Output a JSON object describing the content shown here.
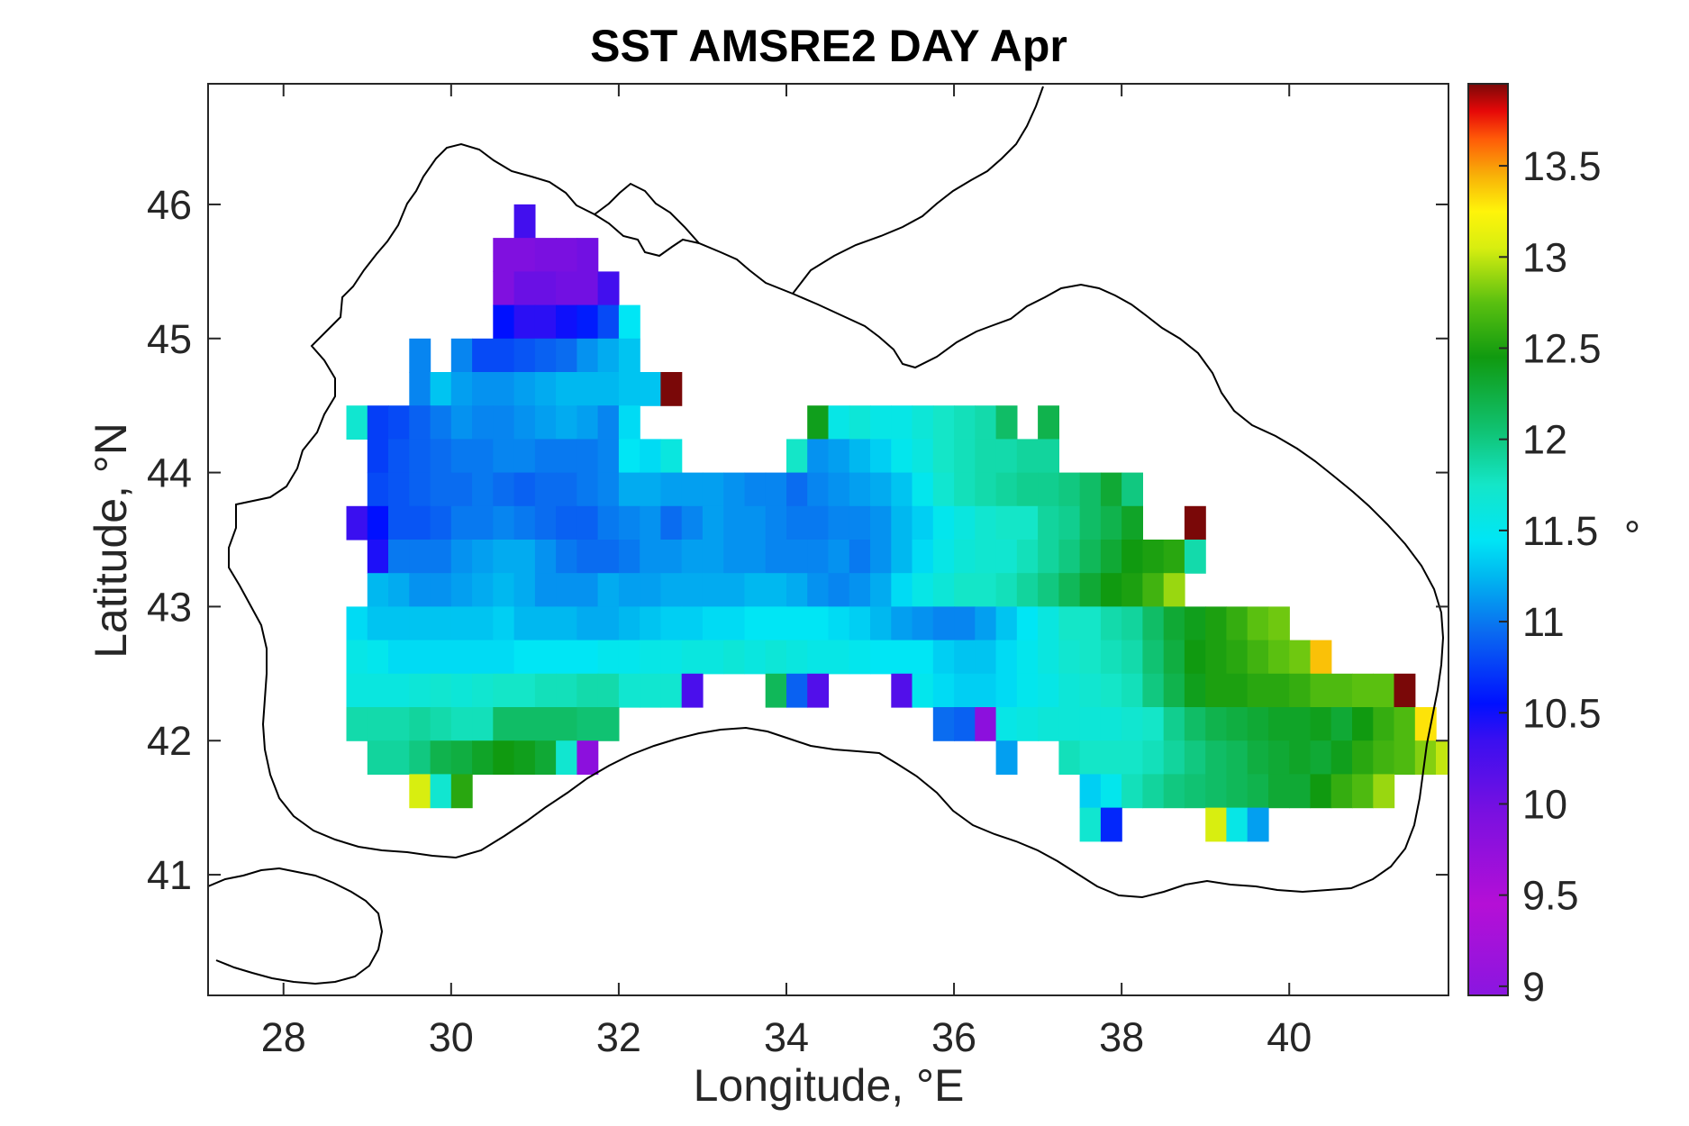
{
  "title": "SST AMSRE2 DAY Apr",
  "xlabel": "Longitude, °E",
  "ylabel": "Latitude, °N",
  "colorbar_unit": "°",
  "x_ticks": [
    "28",
    "30",
    "32",
    "34",
    "36",
    "38",
    "40"
  ],
  "y_ticks": [
    "46",
    "45",
    "44",
    "43",
    "42",
    "41"
  ],
  "colorbar_ticks": [
    "13.5",
    "13",
    "12.5",
    "12",
    "11.5",
    "11",
    "10.5",
    "10",
    "9.5",
    "9"
  ],
  "chart_data": {
    "type": "heatmap",
    "title": "SST AMSRE2 DAY Apr",
    "xlabel": "Longitude, °E",
    "ylabel": "Latitude, °N",
    "xlim": [
      27.1,
      41.9
    ],
    "ylim": [
      40.1,
      46.9
    ],
    "x_ticks": [
      28,
      30,
      32,
      34,
      36,
      38,
      40
    ],
    "y_ticks": [
      41,
      42,
      43,
      44,
      45,
      46
    ],
    "colorbar": {
      "min": 8.95,
      "max": 13.95,
      "ticks": [
        9,
        9.5,
        10,
        10.5,
        11,
        11.5,
        12,
        12.5,
        13,
        13.5
      ],
      "colormap": "jet-like (violet-blue-cyan-green-yellow-red-dark red)"
    },
    "grid_cell_degrees": 0.25,
    "rows_note": "each row: lat = cell center latitude, lon0 = center longitude of first cell, values = SST in degrees, null = no data",
    "rows": [
      {
        "lat": 45.875,
        "lon0": 30.875,
        "values": [
          10.3
        ]
      },
      {
        "lat": 45.625,
        "lon0": 30.625,
        "values": [
          9.9,
          9.9,
          9.95,
          9.95,
          10.0
        ]
      },
      {
        "lat": 45.375,
        "lon0": 30.625,
        "values": [
          9.9,
          10.05,
          10.05,
          10.0,
          10.0,
          10.3
        ]
      },
      {
        "lat": 45.125,
        "lon0": 30.625,
        "values": [
          10.55,
          10.4,
          10.4,
          10.5,
          10.6,
          10.8,
          11.45
        ]
      },
      {
        "lat": 44.875,
        "lon0": 29.625,
        "values": [
          11.05,
          null,
          11.05,
          10.8,
          10.8,
          10.85,
          10.9,
          10.95,
          11.1,
          11.2,
          11.3
        ]
      },
      {
        "lat": 44.625,
        "lon0": 29.625,
        "values": [
          11.05,
          11.3,
          11.15,
          11.1,
          11.1,
          11.15,
          11.2,
          11.25,
          11.25,
          11.25,
          11.3,
          11.3,
          13.95
        ]
      },
      {
        "lat": 44.375,
        "lon0": 28.875,
        "values": [
          11.7,
          10.75,
          10.8,
          10.9,
          11.0,
          11.1,
          11.05,
          11.05,
          11.1,
          11.15,
          11.2,
          11.15,
          11.05,
          11.4,
          null,
          null,
          null,
          null,
          null,
          null,
          null,
          null,
          12.4,
          11.55,
          11.65,
          11.55,
          11.55,
          11.65,
          11.75,
          11.8,
          11.85,
          12.1,
          null,
          12.2
        ]
      },
      {
        "lat": 44.125,
        "lon0": 28.875,
        "values": [
          null,
          10.75,
          10.85,
          10.9,
          10.95,
          11.0,
          11.0,
          11.05,
          11.05,
          11.0,
          11.0,
          11.0,
          11.05,
          11.45,
          11.4,
          11.6,
          null,
          null,
          null,
          null,
          null,
          11.75,
          11.1,
          11.15,
          11.25,
          11.35,
          11.5,
          11.6,
          11.75,
          11.8,
          11.85,
          11.85,
          11.9,
          11.9
        ]
      },
      {
        "lat": 43.875,
        "lon0": 28.875,
        "values": [
          null,
          10.8,
          10.85,
          10.9,
          10.95,
          10.95,
          11.0,
          10.95,
          10.9,
          10.95,
          10.95,
          11.0,
          11.05,
          11.2,
          11.2,
          11.15,
          11.15,
          11.15,
          11.1,
          11.05,
          11.05,
          10.95,
          11.05,
          11.1,
          11.15,
          11.2,
          11.3,
          11.5,
          11.7,
          11.8,
          11.85,
          11.9,
          11.95,
          11.95,
          12.0,
          12.1,
          12.3,
          12.0
        ]
      },
      {
        "lat": 43.625,
        "lon0": 28.875,
        "values": [
          10.35,
          10.55,
          10.85,
          10.85,
          10.9,
          11.0,
          11.0,
          11.05,
          11.0,
          10.95,
          10.9,
          10.9,
          11.0,
          11.05,
          11.1,
          10.95,
          11.05,
          11.15,
          11.1,
          11.1,
          11.05,
          11.0,
          11.0,
          11.05,
          11.05,
          11.1,
          11.25,
          11.35,
          11.5,
          11.6,
          11.7,
          11.75,
          11.75,
          11.9,
          11.95,
          12.1,
          12.2,
          12.35,
          null,
          null,
          13.95
        ]
      },
      {
        "lat": 43.375,
        "lon0": 28.875,
        "values": [
          null,
          10.45,
          11.0,
          11.0,
          11.0,
          11.1,
          11.15,
          11.2,
          11.2,
          11.1,
          11.0,
          10.95,
          10.95,
          11.0,
          11.1,
          11.1,
          11.15,
          11.15,
          11.1,
          11.1,
          11.05,
          11.05,
          11.05,
          11.1,
          11.0,
          11.1,
          11.25,
          11.4,
          11.55,
          11.65,
          11.7,
          11.7,
          11.8,
          11.9,
          12.0,
          12.15,
          12.3,
          12.45,
          12.5,
          12.55,
          11.85
        ]
      },
      {
        "lat": 43.125,
        "lon0": 29.125,
        "values": [
          11.25,
          11.2,
          11.1,
          11.1,
          11.15,
          11.2,
          11.25,
          11.2,
          11.1,
          11.1,
          11.1,
          11.2,
          11.15,
          11.15,
          11.2,
          11.2,
          11.2,
          11.2,
          11.25,
          11.25,
          11.2,
          11.1,
          11.05,
          11.1,
          11.2,
          11.4,
          11.55,
          11.65,
          11.75,
          11.75,
          11.8,
          11.9,
          12.0,
          12.15,
          12.3,
          12.45,
          12.5,
          12.65,
          12.9
        ]
      },
      {
        "lat": 42.875,
        "lon0": 28.875,
        "values": [
          11.4,
          11.3,
          11.3,
          11.3,
          11.3,
          11.3,
          11.3,
          11.35,
          11.25,
          11.25,
          11.25,
          11.2,
          11.2,
          11.25,
          11.3,
          11.35,
          11.35,
          11.4,
          11.4,
          11.45,
          11.45,
          11.45,
          11.45,
          11.4,
          11.35,
          11.25,
          11.15,
          11.1,
          11.05,
          11.05,
          11.15,
          11.3,
          11.45,
          11.6,
          11.75,
          11.75,
          11.85,
          11.9,
          12.1,
          12.3,
          12.4,
          12.5,
          12.6,
          12.75,
          12.8
        ]
      },
      {
        "lat": 42.625,
        "lon0": 28.875,
        "values": [
          11.55,
          11.5,
          11.4,
          11.4,
          11.4,
          11.4,
          11.4,
          11.4,
          11.45,
          11.45,
          11.45,
          11.45,
          11.5,
          11.5,
          11.55,
          11.55,
          11.6,
          11.6,
          11.65,
          11.6,
          11.65,
          11.6,
          11.55,
          11.55,
          11.5,
          11.45,
          11.45,
          11.45,
          11.35,
          11.3,
          11.3,
          11.4,
          11.5,
          11.6,
          11.7,
          11.75,
          11.8,
          11.85,
          12.05,
          12.25,
          12.45,
          12.5,
          12.55,
          12.65,
          12.75,
          12.8,
          13.4
        ]
      },
      {
        "lat": 42.375,
        "lon0": 28.875,
        "values": [
          11.6,
          11.6,
          11.6,
          11.65,
          11.7,
          11.65,
          11.7,
          11.75,
          11.75,
          11.8,
          11.8,
          11.85,
          11.85,
          11.7,
          11.7,
          11.7,
          10.25,
          null,
          null,
          null,
          12.15,
          10.9,
          10.2,
          null,
          null,
          null,
          10.2,
          11.5,
          11.4,
          11.35,
          11.35,
          11.4,
          11.5,
          11.55,
          11.65,
          11.7,
          11.75,
          11.8,
          12.0,
          12.2,
          12.4,
          12.5,
          12.5,
          12.55,
          12.55,
          12.6,
          12.7,
          12.7,
          12.75,
          12.75,
          13.95
        ]
      },
      {
        "lat": 42.125,
        "lon0": 28.875,
        "values": [
          11.85,
          11.85,
          11.85,
          11.9,
          11.85,
          11.8,
          11.8,
          12.1,
          12.1,
          12.1,
          12.1,
          12.05,
          12.05,
          null,
          null,
          null,
          null,
          null,
          null,
          null,
          null,
          null,
          null,
          null,
          null,
          null,
          null,
          null,
          10.95,
          10.9,
          9.8,
          11.55,
          11.6,
          11.65,
          11.65,
          11.65,
          11.65,
          11.7,
          11.75,
          11.95,
          12.1,
          12.2,
          12.25,
          12.3,
          12.35,
          12.35,
          12.4,
          12.3,
          12.45,
          12.6,
          12.7,
          13.3
        ]
      },
      {
        "lat": 41.875,
        "lon0": 29.125,
        "values": [
          11.9,
          11.9,
          12.0,
          12.2,
          12.25,
          12.35,
          12.45,
          12.4,
          12.3,
          11.7,
          9.8,
          null,
          null,
          null,
          null,
          null,
          null,
          null,
          null,
          null,
          null,
          null,
          null,
          null,
          null,
          null,
          null,
          null,
          null,
          null,
          11.15,
          null,
          null,
          11.8,
          11.75,
          11.75,
          11.75,
          11.8,
          11.9,
          12.0,
          12.1,
          12.15,
          12.25,
          12.3,
          12.35,
          12.3,
          12.4,
          12.55,
          12.65,
          12.7,
          12.85,
          13.0
        ]
      },
      {
        "lat": 41.625,
        "lon0": 29.625,
        "values": [
          13.05,
          11.7,
          12.55,
          null,
          null,
          null,
          null,
          null,
          null,
          null,
          null,
          null,
          null,
          null,
          null,
          null,
          null,
          null,
          null,
          null,
          null,
          null,
          null,
          null,
          null,
          null,
          null,
          null,
          null,
          null,
          null,
          null,
          11.35,
          11.5,
          11.8,
          11.9,
          12.0,
          12.05,
          12.1,
          12.15,
          12.2,
          12.3,
          12.3,
          12.45,
          12.6,
          12.7,
          12.9
        ]
      },
      {
        "lat": 41.375,
        "lon0": 37.625,
        "values": [
          11.7,
          10.65,
          null,
          null,
          null,
          null,
          13.05,
          11.55,
          11.15
        ]
      }
    ]
  }
}
